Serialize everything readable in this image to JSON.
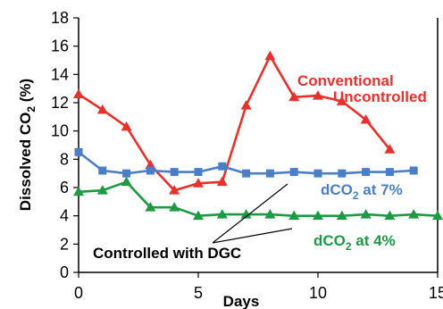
{
  "chart_data": {
    "type": "line",
    "xlabel": "Days",
    "ylabel": "Dissolved CO₂ (%)",
    "xlim": [
      0,
      15
    ],
    "ylim": [
      0,
      18
    ],
    "xticks": [
      0,
      5,
      10,
      15
    ],
    "yticks": [
      0,
      2,
      4,
      6,
      8,
      10,
      12,
      14,
      16,
      18
    ],
    "grid": false,
    "legend": "none",
    "series": [
      {
        "color": "#e8312b",
        "marker": "triangle",
        "points": [
          [
            0,
            12.6
          ],
          [
            1,
            11.5
          ],
          [
            2,
            10.3
          ],
          [
            3,
            7.6
          ],
          [
            4,
            5.8
          ],
          [
            5,
            6.3
          ],
          [
            6,
            6.4
          ],
          [
            7,
            11.8
          ],
          [
            8,
            15.3
          ],
          [
            9,
            12.4
          ],
          [
            10,
            12.5
          ],
          [
            11,
            12.1
          ],
          [
            12,
            10.8
          ],
          [
            13,
            8.7
          ]
        ]
      },
      {
        "color": "#4a7fc8",
        "marker": "square",
        "points": [
          [
            0,
            8.5
          ],
          [
            1,
            7.2
          ],
          [
            2,
            7.0
          ],
          [
            3,
            7.2
          ],
          [
            4,
            7.1
          ],
          [
            5,
            7.1
          ],
          [
            6,
            7.5
          ],
          [
            7,
            7.0
          ],
          [
            8,
            7.0
          ],
          [
            9,
            7.1
          ],
          [
            10,
            7.0
          ],
          [
            11,
            7.0
          ],
          [
            12,
            7.1
          ],
          [
            13,
            7.1
          ],
          [
            14,
            7.2
          ]
        ]
      },
      {
        "color": "#1e9a45",
        "marker": "triangle",
        "points": [
          [
            0,
            5.7
          ],
          [
            1,
            5.8
          ],
          [
            2,
            6.4
          ],
          [
            3,
            4.6
          ],
          [
            4,
            4.6
          ],
          [
            5,
            4.0
          ],
          [
            6,
            4.1
          ],
          [
            7,
            4.1
          ],
          [
            8,
            4.1
          ],
          [
            9,
            4.0
          ],
          [
            10,
            4.0
          ],
          [
            11,
            4.0
          ],
          [
            12,
            4.1
          ],
          [
            13,
            4.0
          ],
          [
            14,
            4.1
          ],
          [
            15,
            4.0
          ]
        ]
      }
    ],
    "annotations": {
      "conventional_line1": "Conventional",
      "conventional_line2": "Uncontrolled",
      "dco2_7_prefix": "dCO",
      "dco2_7_sub": "2",
      "dco2_7_suffix": " at 7%",
      "dco2_4_prefix": "dCO",
      "dco2_4_sub": "2",
      "dco2_4_suffix": " at 4%",
      "controlled": "Controlled with DGC",
      "ylabel_prefix": "Dissolved CO",
      "ylabel_sub": "2",
      "ylabel_suffix": " (%)"
    }
  }
}
